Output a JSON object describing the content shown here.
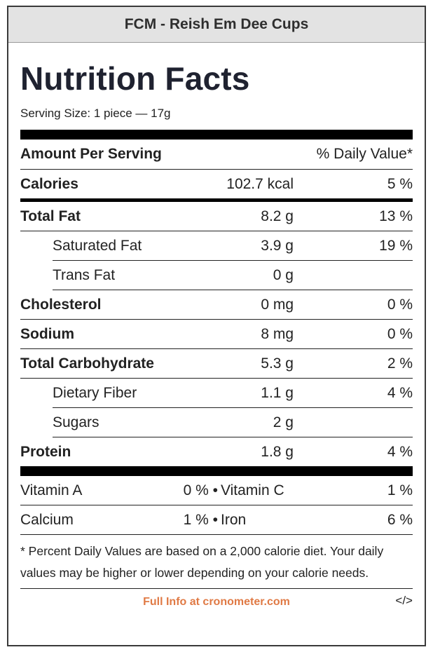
{
  "header": {
    "title": "FCM - Reish Em Dee Cups"
  },
  "label": {
    "title": "Nutrition Facts",
    "serving_size": "Serving Size: 1 piece — 17g",
    "amount_per_serving": "Amount Per Serving",
    "daily_value_header": "% Daily Value*",
    "calories": {
      "name": "Calories",
      "amount": "102.7 kcal",
      "dv": "5 %"
    },
    "nutrients": [
      {
        "name": "Total Fat",
        "amount": "8.2 g",
        "dv": "13 %"
      },
      {
        "name": "Saturated Fat",
        "amount": "3.9 g",
        "dv": "19 %"
      },
      {
        "name": "Trans Fat",
        "amount": "0 g",
        "dv": ""
      },
      {
        "name": "Cholesterol",
        "amount": "0 mg",
        "dv": "0 %"
      },
      {
        "name": "Sodium",
        "amount": "8 mg",
        "dv": "0 %"
      },
      {
        "name": "Total Carbohydrate",
        "amount": "5.3 g",
        "dv": "2 %"
      },
      {
        "name": "Dietary Fiber",
        "amount": "1.1 g",
        "dv": "4 %"
      },
      {
        "name": "Sugars",
        "amount": "2 g",
        "dv": ""
      },
      {
        "name": "Protein",
        "amount": "1.8 g",
        "dv": "4 %"
      }
    ],
    "vitamins": [
      {
        "name1": "Vitamin A",
        "val1": "0 %",
        "name2": "Vitamin C",
        "val2": "1 %"
      },
      {
        "name1": "Calcium",
        "val1": "1 %",
        "name2": "Iron",
        "val2": "6 %"
      }
    ],
    "footnote": "* Percent Daily Values are based on a 2,000 calorie diet. Your daily values may be higher or lower depending on your calorie needs.",
    "footer_link": "Full Info at cronometer.com",
    "embed_label": "</>"
  }
}
